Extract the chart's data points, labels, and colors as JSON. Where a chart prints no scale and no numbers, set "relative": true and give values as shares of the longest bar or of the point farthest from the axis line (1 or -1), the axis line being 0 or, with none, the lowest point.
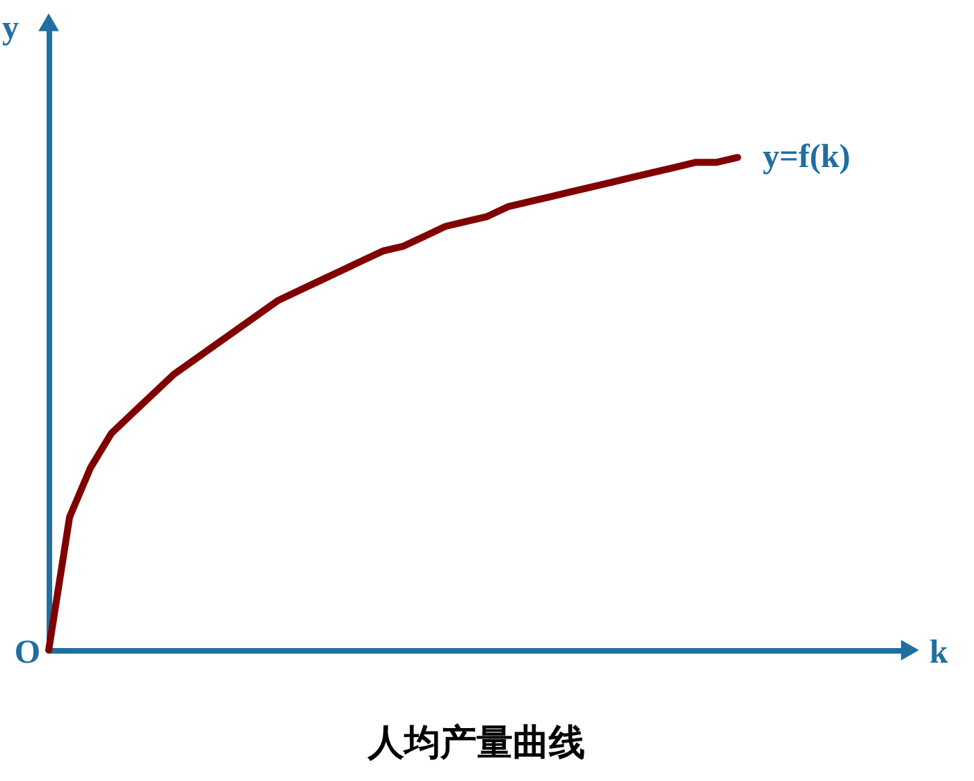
{
  "chart_data": {
    "type": "line",
    "relative": true,
    "title": "人均产量曲线",
    "ylabel": "y",
    "annotations": [
      "O",
      "k"
    ],
    "categories": [
      null,
      null,
      null,
      null,
      null,
      null,
      null,
      null,
      null,
      null,
      null,
      null,
      null,
      null,
      null,
      null,
      null,
      null,
      null,
      null,
      null,
      null,
      null,
      null,
      null,
      null,
      null,
      null,
      null,
      null,
      null,
      null,
      null,
      null
    ],
    "series": [
      {
        "name": "y=f(k)",
        "color": "#800000",
        "values": [
          0,
          0.27,
          0.37,
          0.44,
          0.48,
          0.52,
          0.56,
          0.59,
          0.62,
          0.65,
          0.68,
          0.71,
          0.73,
          0.75,
          0.77,
          0.79,
          0.81,
          0.82,
          0.84,
          0.86,
          0.87,
          0.88,
          0.9,
          0.91,
          0.92,
          0.93,
          0.94,
          0.95,
          0.96,
          0.97,
          0.98,
          0.99,
          0.99,
          1.0
        ]
      }
    ]
  }
}
